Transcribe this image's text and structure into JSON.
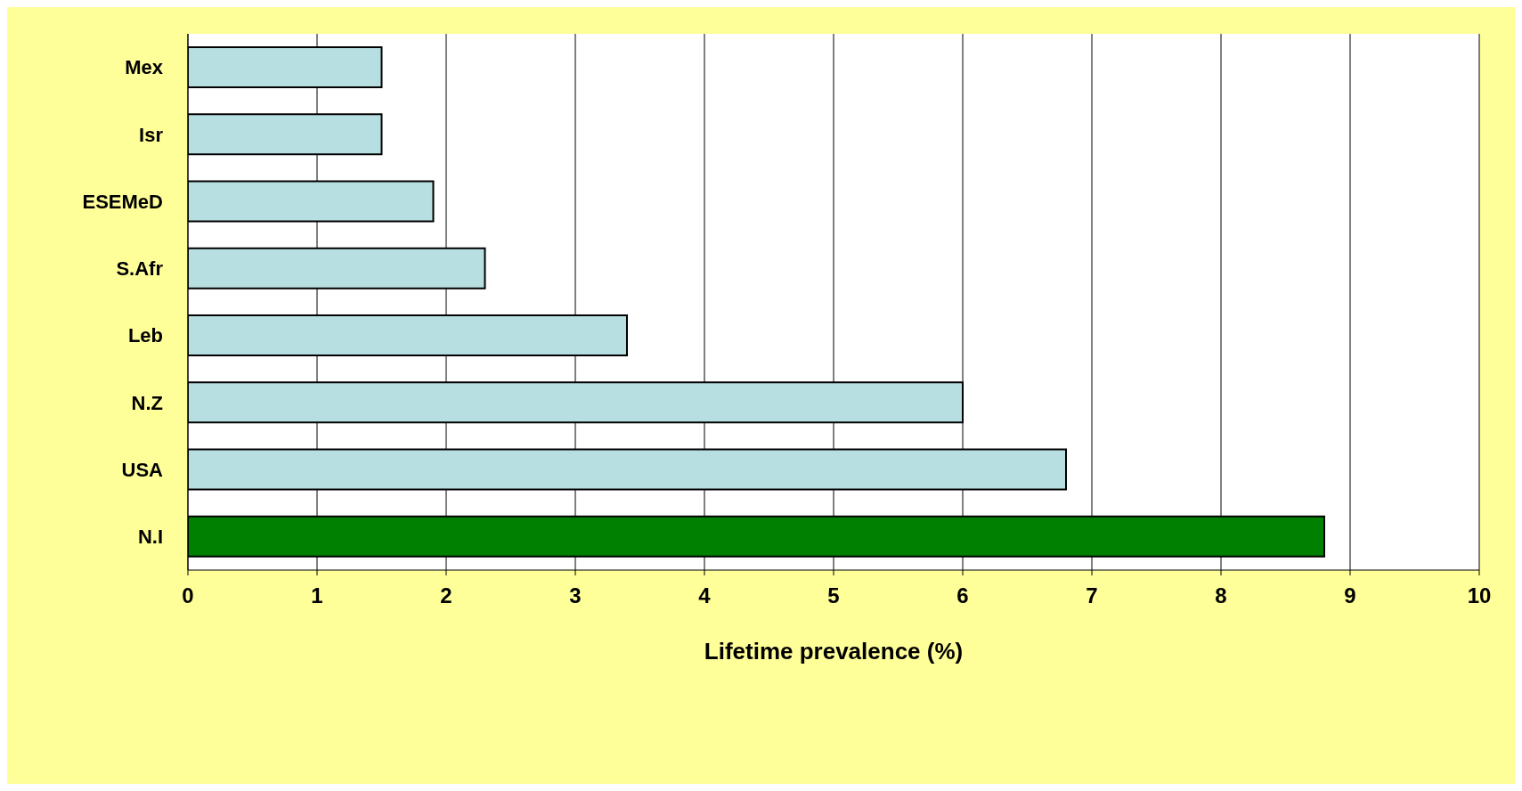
{
  "chart_data": {
    "type": "bar",
    "orientation": "horizontal",
    "xlabel": "Lifetime prevalence (%)",
    "categories": [
      "Mex",
      "Isr",
      "ESEMeD",
      "S.Afr",
      "Leb",
      "N.Z",
      "USA",
      "N.I"
    ],
    "values": [
      1.5,
      1.5,
      1.9,
      2.3,
      3.4,
      6.0,
      6.8,
      8.8
    ],
    "colors": [
      "#b7dee0",
      "#b7dee0",
      "#b7dee0",
      "#b7dee0",
      "#b7dee0",
      "#b7dee0",
      "#b7dee0",
      "#008000"
    ],
    "xlim": [
      0,
      10
    ],
    "xticks": [
      0,
      1,
      2,
      3,
      4,
      5,
      6,
      7,
      8,
      9,
      10
    ],
    "grid": "x"
  }
}
